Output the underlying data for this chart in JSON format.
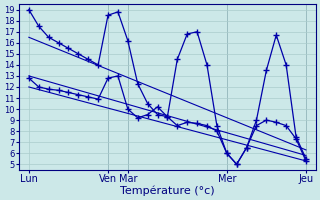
{
  "title": "Température (°c)",
  "background_color": "#cce8e8",
  "grid_color": "#aacccc",
  "line_color": "#0000aa",
  "ylim": [
    4.5,
    19.5
  ],
  "yticks": [
    5,
    6,
    7,
    8,
    9,
    10,
    11,
    12,
    13,
    14,
    15,
    16,
    17,
    18,
    19
  ],
  "xlim": [
    -1,
    29
  ],
  "x_tick_positions": [
    0,
    8,
    10,
    20,
    28
  ],
  "x_labels": [
    "Lun",
    "Ven",
    "Mar",
    "Mer",
    "Jeu"
  ],
  "vlines": [
    8,
    10,
    20,
    28
  ],
  "series_max_x": [
    0,
    1,
    2,
    3,
    4,
    5,
    6,
    7,
    8,
    9,
    10,
    11,
    12,
    13,
    14,
    15,
    16,
    17,
    18,
    19,
    20,
    21,
    22,
    23,
    24,
    25,
    26,
    27,
    28
  ],
  "series_max_y": [
    19.0,
    17.5,
    16.5,
    16.0,
    15.5,
    15.0,
    14.5,
    14.0,
    18.5,
    18.8,
    16.2,
    12.3,
    10.5,
    9.5,
    9.3,
    14.5,
    16.8,
    17.0,
    14.0,
    8.5,
    6.0,
    5.0,
    6.5,
    9.0,
    13.5,
    16.7,
    14.0,
    7.5,
    5.5
  ],
  "series_min_x": [
    0,
    1,
    2,
    3,
    4,
    5,
    6,
    7,
    8,
    9,
    10,
    11,
    12,
    13,
    14,
    15,
    16,
    17,
    18,
    19,
    20,
    21,
    22,
    23,
    24,
    25,
    26,
    27,
    28
  ],
  "series_min_y": [
    12.8,
    12.0,
    11.8,
    11.7,
    11.5,
    11.3,
    11.1,
    10.9,
    12.8,
    13.0,
    10.0,
    9.2,
    9.5,
    10.2,
    9.3,
    8.5,
    8.8,
    8.7,
    8.5,
    8.0,
    6.0,
    5.0,
    6.5,
    8.5,
    9.0,
    8.8,
    8.5,
    7.3,
    5.3
  ],
  "trend1_x": [
    0,
    28
  ],
  "trend1_y": [
    16.5,
    6.3
  ],
  "trend2_x": [
    0,
    28
  ],
  "trend2_y": [
    13.0,
    5.8
  ],
  "trend3_x": [
    0,
    28
  ],
  "trend3_y": [
    12.0,
    5.3
  ]
}
